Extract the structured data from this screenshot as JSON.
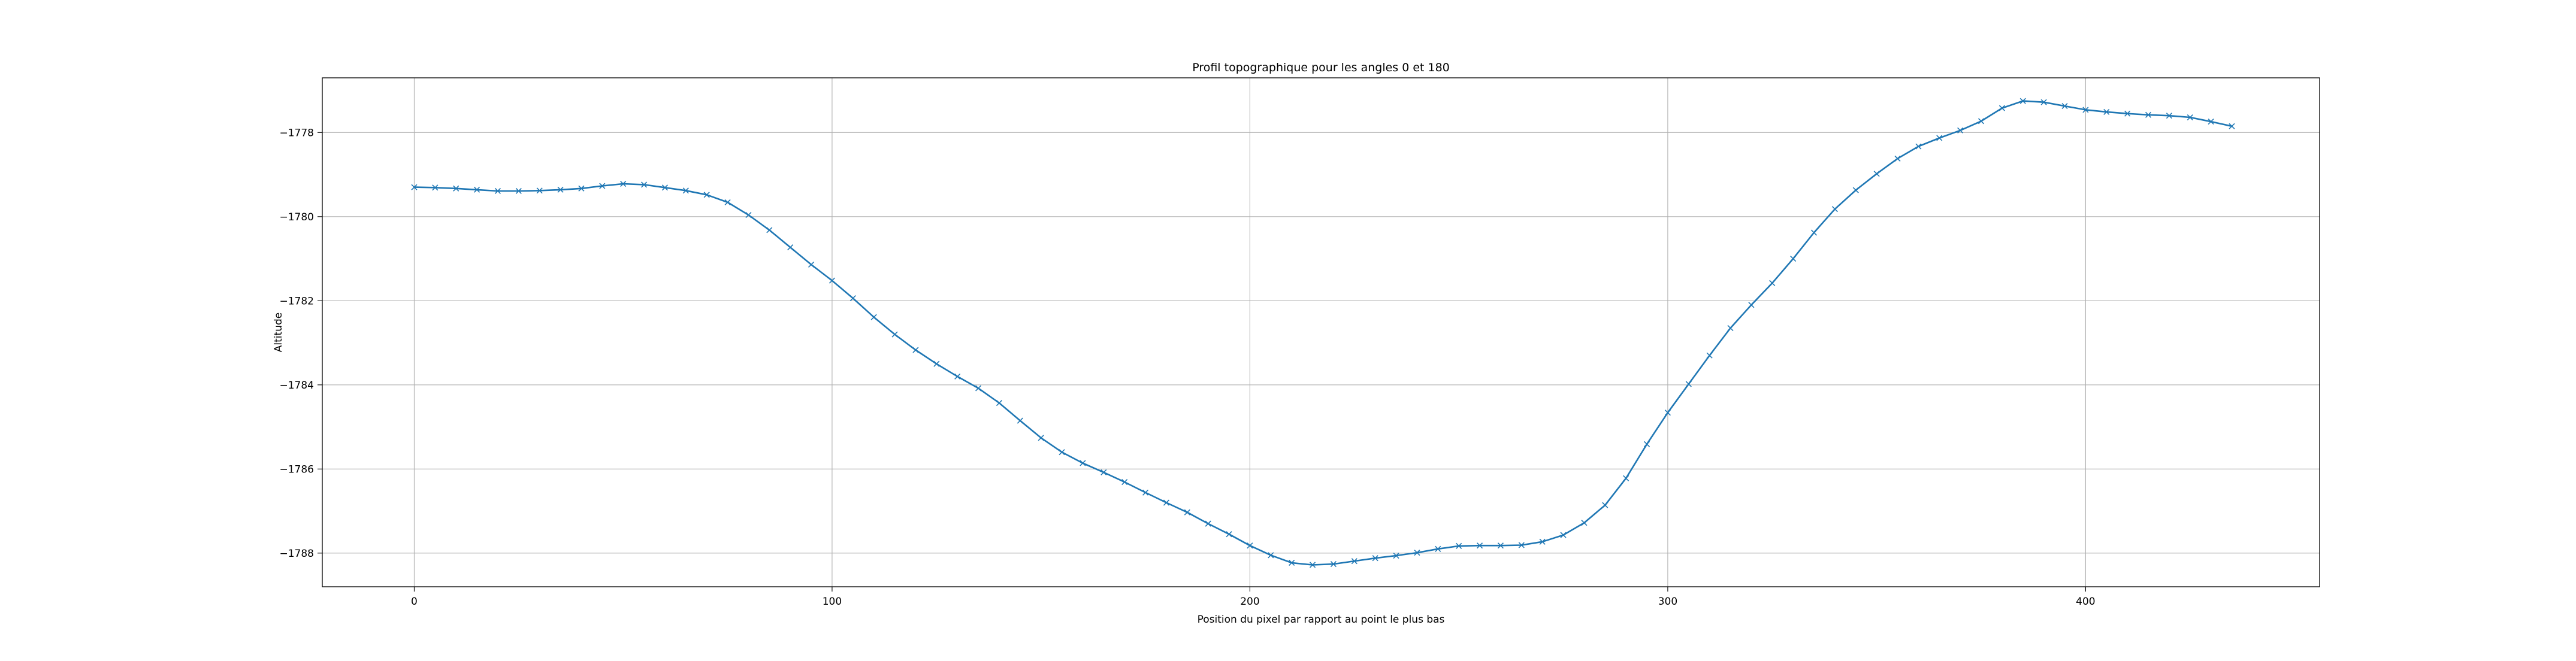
{
  "chart_data": {
    "type": "line",
    "title": "Profil topographique pour les angles 0 et 180",
    "xlabel": "Position du pixel par rapport au point le plus bas",
    "ylabel": "Altitude",
    "xlim": [
      -22,
      456
    ],
    "ylim": [
      -1788.8,
      -1776.7
    ],
    "xticks": [
      0,
      100,
      200,
      300,
      400
    ],
    "yticks": [
      -1778,
      -1780,
      -1782,
      -1784,
      -1786,
      -1788
    ],
    "grid": true,
    "legend": "none",
    "marker": "x",
    "color": "#1f77b4",
    "series": [
      {
        "x": [
          0,
          5,
          10,
          15,
          20,
          25,
          30,
          35,
          40,
          45,
          50,
          55,
          60,
          65,
          70,
          75,
          80,
          85,
          90,
          95,
          100,
          105,
          110,
          115,
          120,
          125,
          130,
          135,
          140,
          145,
          150,
          155,
          160,
          165,
          170,
          175,
          180,
          185,
          190,
          195,
          200,
          205,
          210,
          215,
          220,
          225,
          230,
          235,
          240,
          245,
          250,
          255,
          260,
          265,
          270,
          275,
          280,
          285,
          290,
          295,
          300,
          305,
          310,
          315,
          320,
          325,
          330,
          335,
          340,
          345,
          350,
          355,
          360,
          365,
          370,
          375,
          380,
          385,
          390,
          395,
          400,
          405,
          410,
          415,
          420,
          425,
          430,
          435
        ],
        "y": [
          -1779.3,
          -1779.31,
          -1779.33,
          -1779.36,
          -1779.39,
          -1779.39,
          -1779.38,
          -1779.36,
          -1779.33,
          -1779.27,
          -1779.22,
          -1779.24,
          -1779.31,
          -1779.38,
          -1779.48,
          -1779.66,
          -1779.96,
          -1780.32,
          -1780.73,
          -1781.14,
          -1781.52,
          -1781.94,
          -1782.39,
          -1782.8,
          -1783.17,
          -1783.5,
          -1783.8,
          -1784.08,
          -1784.43,
          -1784.85,
          -1785.26,
          -1785.6,
          -1785.86,
          -1786.08,
          -1786.31,
          -1786.56,
          -1786.8,
          -1787.03,
          -1787.3,
          -1787.55,
          -1787.82,
          -1788.05,
          -1788.23,
          -1788.28,
          -1788.26,
          -1788.19,
          -1788.12,
          -1788.06,
          -1787.99,
          -1787.9,
          -1787.83,
          -1787.82,
          -1787.82,
          -1787.81,
          -1787.73,
          -1787.57,
          -1787.28,
          -1786.86,
          -1786.22,
          -1785.41,
          -1784.66,
          -1783.98,
          -1783.3,
          -1782.65,
          -1782.1,
          -1781.58,
          -1781.0,
          -1780.38,
          -1779.82,
          -1779.37,
          -1778.98,
          -1778.62,
          -1778.33,
          -1778.13,
          -1777.95,
          -1777.73,
          -1777.42,
          -1777.25,
          -1777.28,
          -1777.37,
          -1777.46,
          -1777.51,
          -1777.55,
          -1777.58,
          -1777.6,
          -1777.64,
          -1777.74,
          -1777.85
        ]
      }
    ]
  }
}
